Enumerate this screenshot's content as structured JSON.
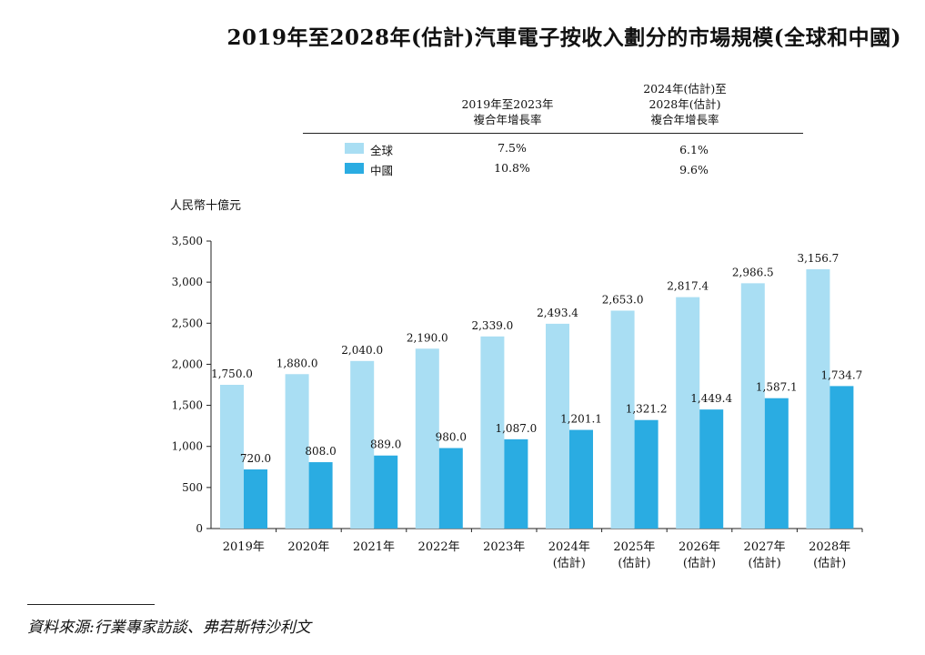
{
  "title": "2019年至2028年(估計)汽車電子按收入劃分的市場規模(全球和中國)",
  "cagr_table": {
    "header_period1": "2019年至2023年\n複合年增長率",
    "header_period2": "2024年(估計)至\n2028年(估計)\n複合年增長率",
    "rows": [
      {
        "name": "全球",
        "color": "#a9def3",
        "cagr1": "7.5%",
        "cagr2": "6.1%"
      },
      {
        "name": "中國",
        "color": "#2aace2",
        "cagr1": "10.8%",
        "cagr2": "9.6%"
      }
    ]
  },
  "unit_label": "人民幣十億元",
  "chart_data": {
    "type": "bar",
    "categories": [
      "2019年",
      "2020年",
      "2021年",
      "2022年",
      "2023年",
      "2024年\n(估計)",
      "2025年\n(估計)",
      "2026年\n(估計)",
      "2027年\n(估計)",
      "2028年\n(估計)"
    ],
    "series": [
      {
        "name": "全球",
        "color": "#a9def3",
        "values": [
          1750.0,
          1880.0,
          2040.0,
          2190.0,
          2339.0,
          2493.4,
          2653.0,
          2817.4,
          2986.5,
          3156.7
        ],
        "labels": [
          "1,750.0",
          "1,880.0",
          "2,040.0",
          "2,190.0",
          "2,339.0",
          "2,493.4",
          "2,653.0",
          "2,817.4",
          "2,986.5",
          "3,156.7"
        ]
      },
      {
        "name": "中國",
        "color": "#2aace2",
        "values": [
          720.0,
          808.0,
          889.0,
          980.0,
          1087.0,
          1201.1,
          1321.2,
          1449.4,
          1587.1,
          1734.7
        ],
        "labels": [
          "720.0",
          "808.0",
          "889.0",
          "980.0",
          "1,087.0",
          "1,201.1",
          "1,321.2",
          "1,449.4",
          "1,587.1",
          "1,734.7"
        ]
      }
    ],
    "ylabel": "人民幣十億元",
    "ylim": [
      0,
      3500
    ],
    "yticks": [
      0,
      500,
      1000,
      1500,
      2000,
      2500,
      3000,
      3500
    ],
    "ytick_labels": [
      "0",
      "500",
      "1,000",
      "1,500",
      "2,000",
      "2,500",
      "3,000",
      "3,500"
    ],
    "grid": false
  },
  "source": "資料來源:行業專家訪談、弗若斯特沙利文"
}
